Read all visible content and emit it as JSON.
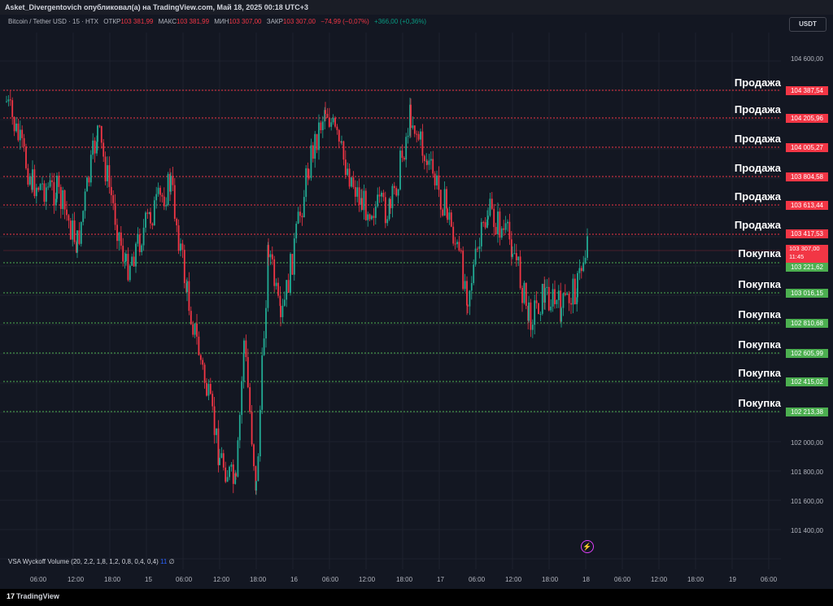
{
  "header": {
    "title": "Asket_Divergentovich опубликовал(а) на TradingView.com, Май 18, 2025 00:18 UTC+3"
  },
  "symbol_info": {
    "name": "Bitcoin / Tether USD · 15 · HTX",
    "open_label": "ОТКР",
    "open": "103 381,99",
    "high_label": "МАКС",
    "high": "103 381,99",
    "low_label": "МИН",
    "low": "103 307,00",
    "close_label": "ЗАКР",
    "close": "103 307,00",
    "change": "−74,99 (−0,07%)",
    "change2": "+366,00 (+0,36%)"
  },
  "currency_button": "USDT",
  "price_axis": [
    "104 600,00",
    "102 000,00",
    "101 800,00",
    "101 600,00",
    "101 400,00"
  ],
  "levels": [
    {
      "label": "Продажа",
      "price": "104 387,54",
      "type": "sell"
    },
    {
      "label": "Продажа",
      "price": "104 205,96",
      "type": "sell"
    },
    {
      "label": "Продажа",
      "price": "104 005,27",
      "type": "sell"
    },
    {
      "label": "Продажа",
      "price": "103 804,58",
      "type": "sell"
    },
    {
      "label": "Продажа",
      "price": "103 613,44",
      "type": "sell"
    },
    {
      "label": "Продажа",
      "price": "103 417,53",
      "type": "sell"
    },
    {
      "label": "Покупка",
      "price": "103 221,62",
      "type": "buy"
    },
    {
      "label": "Покупка",
      "price": "103 016,15",
      "type": "buy"
    },
    {
      "label": "Покупка",
      "price": "102 810,68",
      "type": "buy"
    },
    {
      "label": "Покупка",
      "price": "102 605,99",
      "type": "buy"
    },
    {
      "label": "Покупка",
      "price": "102 415,02",
      "type": "buy"
    },
    {
      "label": "Покупка",
      "price": "102 213,38",
      "type": "buy"
    }
  ],
  "current_price": {
    "price": "103 307,00",
    "countdown": "11:45"
  },
  "time_axis": [
    "06:00",
    "12:00",
    "18:00",
    "15",
    "06:00",
    "12:00",
    "18:00",
    "16",
    "06:00",
    "12:00",
    "18:00",
    "17",
    "06:00",
    "12:00",
    "18:00",
    "18",
    "06:00",
    "12:00",
    "18:00",
    "19",
    "06:00"
  ],
  "indicator": {
    "name": "VSA Wyckoff Volume (20, 2,2, 1,8, 1,2, 0,8, 0,4, 0,4)",
    "value": "11",
    "extra": "∅"
  },
  "footer": {
    "brand": "TradingView"
  },
  "colors": {
    "up": "#22ab94",
    "down": "#f23645",
    "sell_line": "#f23645",
    "buy_line": "#4caf50",
    "bg": "#131722"
  }
}
